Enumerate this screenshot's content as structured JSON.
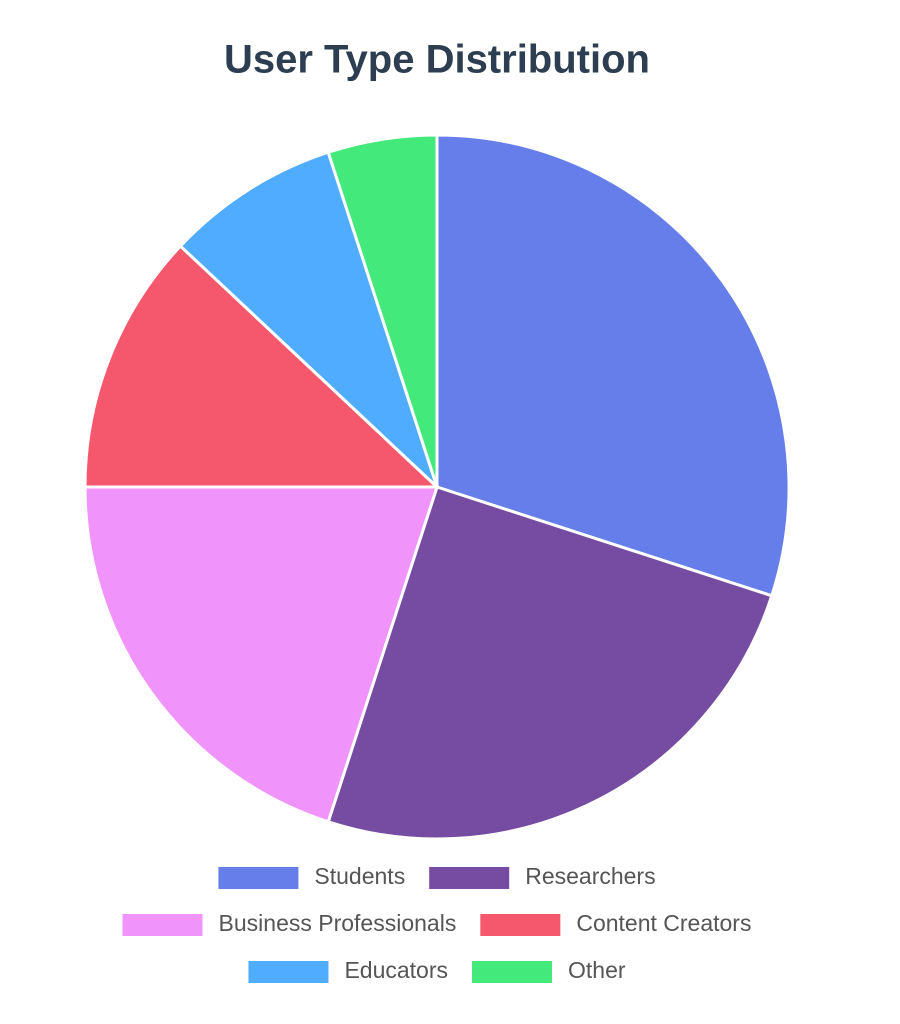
{
  "chart_data": {
    "type": "pie",
    "title": "User Type Distribution",
    "categories": [
      "Students",
      "Researchers",
      "Business Professionals",
      "Content Creators",
      "Educators",
      "Other"
    ],
    "values": [
      30,
      25,
      20,
      12,
      8,
      5
    ],
    "colors": [
      "#667eea",
      "#764ba2",
      "#f093fb",
      "#f5576c",
      "#4facfe",
      "#43e97b"
    ],
    "legend": "bottom"
  }
}
